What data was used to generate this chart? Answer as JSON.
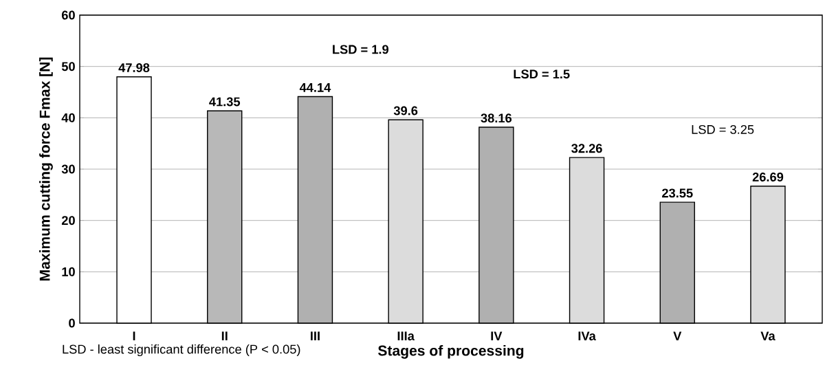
{
  "chart_data": {
    "type": "bar",
    "xlabel": "Stages of processing",
    "ylabel": "Maximum cutting force Fmax [N]",
    "categories": [
      "I",
      "II",
      "III",
      "IIIa",
      "IV",
      "IVa",
      "V",
      "Va"
    ],
    "values": [
      47.98,
      41.35,
      44.14,
      39.6,
      38.16,
      32.26,
      23.55,
      26.69
    ],
    "colors": [
      "#ffffff",
      "#b8b8b8",
      "#b0b0b0",
      "#dcdcdc",
      "#b0b0b0",
      "#dcdcdc",
      "#b0b0b0",
      "#dcdcdc"
    ],
    "ylim": [
      0,
      60
    ],
    "yticks": [
      0,
      10,
      20,
      30,
      40,
      50,
      60
    ],
    "grid": "y",
    "data_labels": true,
    "annotations": [
      "LSD = 1.9",
      "LSD = 1.5",
      "LSD = 3.25",
      "LSD - least significant difference (P < 0.05)"
    ]
  }
}
